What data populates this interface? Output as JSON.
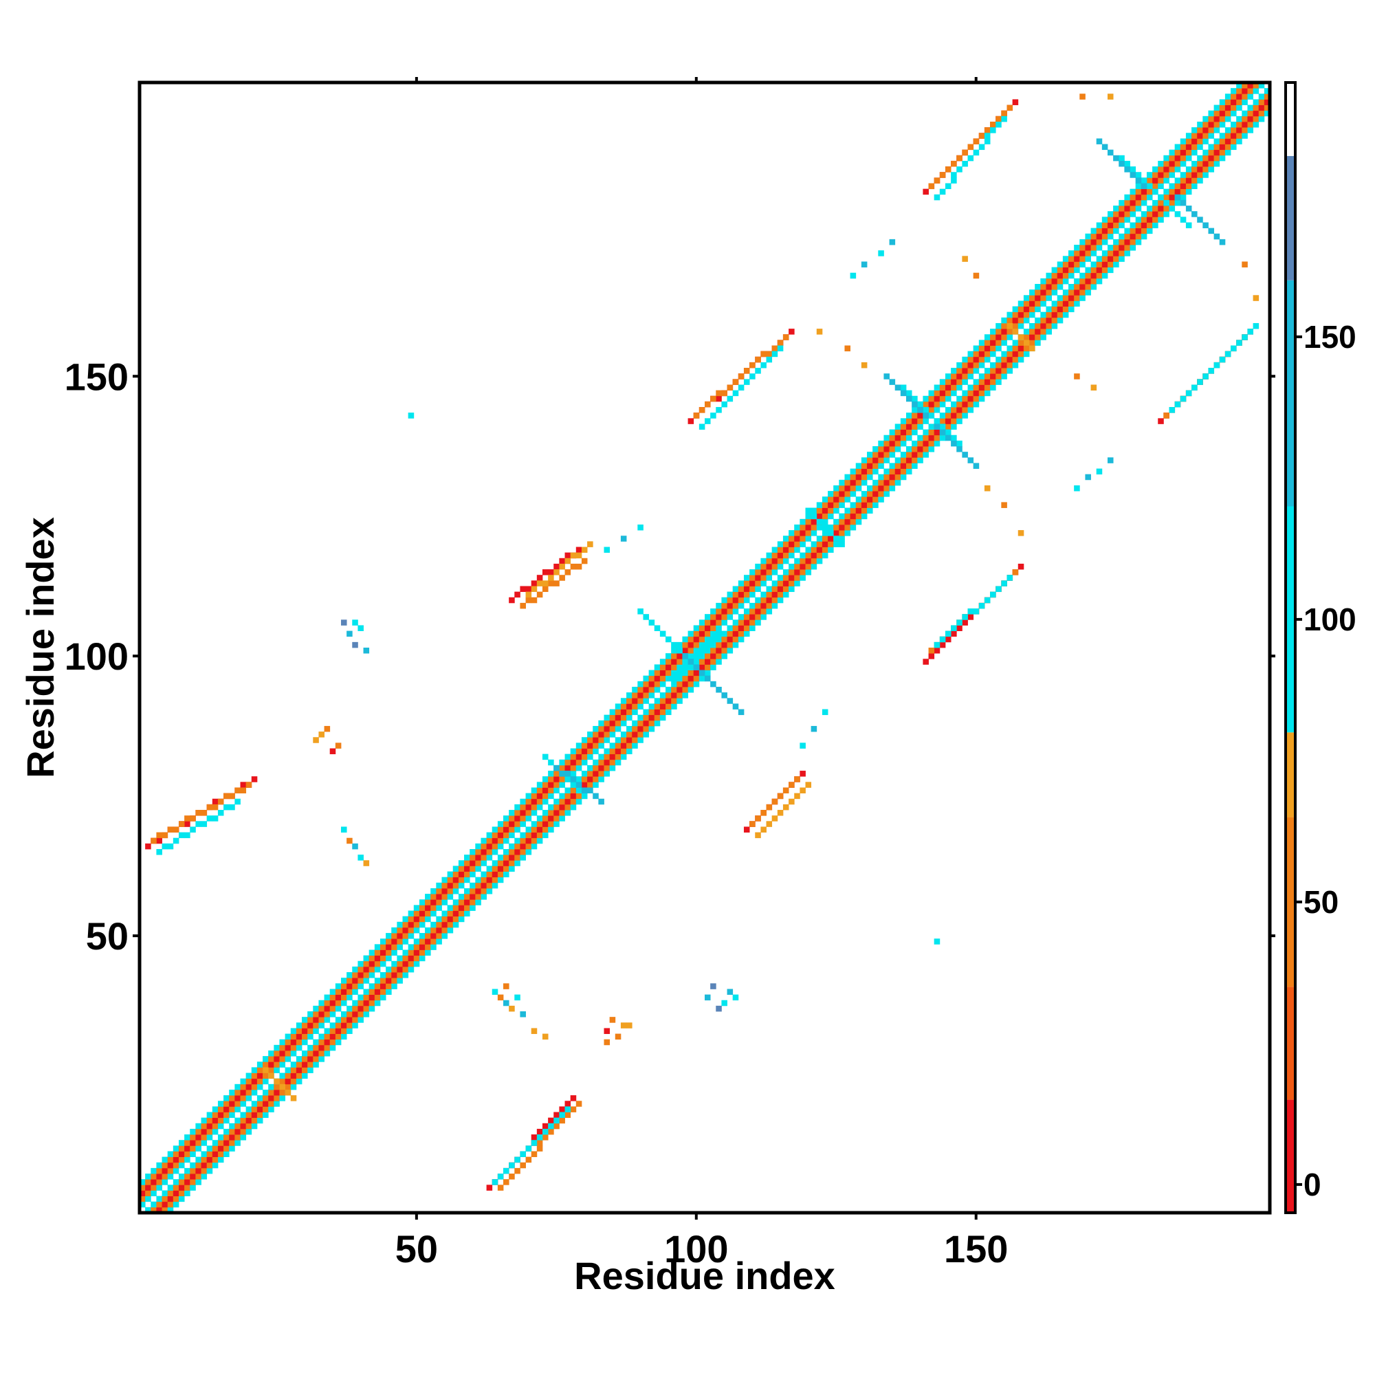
{
  "chart_data": {
    "type": "heatmap",
    "title": "",
    "xlabel": "Residue index",
    "ylabel": "Residue index",
    "xlim": [
      1,
      202
    ],
    "ylim": [
      1,
      202
    ],
    "x_ticks": [
      50,
      100,
      150
    ],
    "y_ticks": [
      50,
      100,
      150
    ],
    "grid": false,
    "colorbar": {
      "position": "right",
      "ticks": [
        0,
        50,
        100,
        150
      ],
      "range": [
        -5,
        195
      ],
      "bins": [
        {
          "from": -5,
          "to": 15,
          "color": "#e8141c"
        },
        {
          "from": 15,
          "to": 35,
          "color": "#f05a14"
        },
        {
          "from": 35,
          "to": 65,
          "color": "#ef7f16"
        },
        {
          "from": 65,
          "to": 80,
          "color": "#f0a020"
        },
        {
          "from": 80,
          "to": 120,
          "color": "#00e5ee"
        },
        {
          "from": 120,
          "to": 160,
          "color": "#1cb9d9"
        },
        {
          "from": 160,
          "to": 182,
          "color": "#5a84b8"
        },
        {
          "from": 182,
          "to": 195,
          "color": "#ffffff"
        }
      ]
    },
    "diagonal_band": {
      "from": 1,
      "to": 202,
      "offsets": [
        {
          "d": 1,
          "color": "#00e5ee"
        },
        {
          "d": 2,
          "color": "#ef7f16"
        },
        {
          "d": 3,
          "color": "#e8141c"
        },
        {
          "d": 4,
          "color": "#ef7f16"
        },
        {
          "d": 5,
          "color": "#00e5ee"
        }
      ]
    },
    "contact_segments": [
      {
        "x1": 63,
        "y1": 5,
        "x2": 78,
        "y2": 21,
        "color": "#e8141c"
      },
      {
        "x1": 65,
        "y1": 5,
        "x2": 79,
        "y2": 20,
        "color": "#ef7f16"
      },
      {
        "x1": 64,
        "y1": 6,
        "x2": 77,
        "y2": 19,
        "color": "#00e5ee"
      },
      {
        "x1": 2,
        "y1": 66,
        "x2": 21,
        "y2": 78,
        "color": "#e8141c"
      },
      {
        "x1": 3,
        "y1": 67,
        "x2": 20,
        "y2": 77,
        "color": "#ef7f16"
      },
      {
        "x1": 4,
        "y1": 65,
        "x2": 18,
        "y2": 74,
        "color": "#00e5ee"
      },
      {
        "x1": 67,
        "y1": 110,
        "x2": 79,
        "y2": 119,
        "color": "#e8141c"
      },
      {
        "x1": 69,
        "y1": 109,
        "x2": 80,
        "y2": 117,
        "color": "#ef7f16"
      },
      {
        "x1": 70,
        "y1": 111,
        "x2": 81,
        "y2": 120,
        "color": "#f0a020"
      },
      {
        "x1": 109,
        "y1": 69,
        "x2": 119,
        "y2": 79,
        "color": "#e8141c"
      },
      {
        "x1": 110,
        "y1": 70,
        "x2": 118,
        "y2": 78,
        "color": "#ef7f16"
      },
      {
        "x1": 111,
        "y1": 68,
        "x2": 120,
        "y2": 77,
        "color": "#f0a020"
      },
      {
        "x1": 99,
        "y1": 142,
        "x2": 117,
        "y2": 158,
        "color": "#e8141c"
      },
      {
        "x1": 100,
        "y1": 143,
        "x2": 116,
        "y2": 157,
        "color": "#ef7f16"
      },
      {
        "x1": 101,
        "y1": 141,
        "x2": 115,
        "y2": 155,
        "color": "#00e5ee"
      },
      {
        "x1": 141,
        "y1": 99,
        "x2": 158,
        "y2": 116,
        "color": "#e8141c"
      },
      {
        "x1": 142,
        "y1": 101,
        "x2": 157,
        "y2": 115,
        "color": "#ef7f16"
      },
      {
        "x1": 143,
        "y1": 102,
        "x2": 156,
        "y2": 114,
        "color": "#00e5ee"
      },
      {
        "x1": 141,
        "y1": 183,
        "x2": 157,
        "y2": 199,
        "color": "#e8141c"
      },
      {
        "x1": 142,
        "y1": 184,
        "x2": 156,
        "y2": 198,
        "color": "#ef7f16"
      },
      {
        "x1": 143,
        "y1": 182,
        "x2": 155,
        "y2": 196,
        "color": "#00e5ee"
      },
      {
        "x1": 183,
        "y1": 142,
        "x2": 199,
        "y2": 158,
        "color": "#e8141c"
      },
      {
        "x1": 184,
        "y1": 143,
        "x2": 198,
        "y2": 157,
        "color": "#ef7f16"
      },
      {
        "x1": 185,
        "y1": 144,
        "x2": 200,
        "y2": 159,
        "color": "#00e5ee"
      },
      {
        "x1": 96,
        "y1": 96,
        "x2": 104,
        "y2": 104,
        "color": "#00e5ee"
      },
      {
        "x1": 90,
        "y1": 108,
        "x2": 100,
        "y2": 98,
        "color": "#00e5ee"
      },
      {
        "x1": 98,
        "y1": 100,
        "x2": 108,
        "y2": 90,
        "color": "#1cb9d9"
      },
      {
        "x1": 137,
        "y1": 148,
        "x2": 147,
        "y2": 138,
        "color": "#00e5ee"
      },
      {
        "x1": 134,
        "y1": 150,
        "x2": 141,
        "y2": 143,
        "color": "#1cb9d9"
      },
      {
        "x1": 143,
        "y1": 141,
        "x2": 150,
        "y2": 134,
        "color": "#1cb9d9"
      },
      {
        "x1": 176,
        "y1": 189,
        "x2": 188,
        "y2": 177,
        "color": "#00e5ee"
      },
      {
        "x1": 172,
        "y1": 192,
        "x2": 180,
        "y2": 184,
        "color": "#1cb9d9"
      },
      {
        "x1": 186,
        "y1": 182,
        "x2": 194,
        "y2": 174,
        "color": "#1cb9d9"
      },
      {
        "x1": 23,
        "y1": 26,
        "x2": 28,
        "y2": 21,
        "color": "#f0a020"
      },
      {
        "x1": 73,
        "y1": 82,
        "x2": 80,
        "y2": 75,
        "color": "#00e5ee"
      },
      {
        "x1": 75,
        "y1": 80,
        "x2": 83,
        "y2": 74,
        "color": "#1cb9d9"
      },
      {
        "x1": 120,
        "y1": 126,
        "x2": 126,
        "y2": 120,
        "color": "#00e5ee"
      },
      {
        "x1": 156,
        "y1": 159,
        "x2": 160,
        "y2": 155,
        "color": "#f0a020"
      }
    ],
    "contact_clusters": [
      {
        "x": 38,
        "y": 104,
        "color": "#1cb9d9"
      },
      {
        "x": 39,
        "y": 102,
        "color": "#5a84b8"
      },
      {
        "x": 40,
        "y": 105,
        "color": "#00e5ee"
      },
      {
        "x": 41,
        "y": 101,
        "color": "#1cb9d9"
      },
      {
        "x": 37,
        "y": 106,
        "color": "#5a84b8"
      },
      {
        "x": 39,
        "y": 106,
        "color": "#00e5ee"
      },
      {
        "x": 102,
        "y": 39,
        "color": "#1cb9d9"
      },
      {
        "x": 103,
        "y": 41,
        "color": "#5a84b8"
      },
      {
        "x": 105,
        "y": 38,
        "color": "#00e5ee"
      },
      {
        "x": 106,
        "y": 40,
        "color": "#1cb9d9"
      },
      {
        "x": 104,
        "y": 37,
        "color": "#5a84b8"
      },
      {
        "x": 107,
        "y": 39,
        "color": "#00e5ee"
      },
      {
        "x": 64,
        "y": 40,
        "color": "#00e5ee"
      },
      {
        "x": 65,
        "y": 39,
        "color": "#ef7f16"
      },
      {
        "x": 66,
        "y": 38,
        "color": "#1cb9d9"
      },
      {
        "x": 67,
        "y": 37,
        "color": "#f0a020"
      },
      {
        "x": 68,
        "y": 39,
        "color": "#00e5ee"
      },
      {
        "x": 69,
        "y": 36,
        "color": "#1cb9d9"
      },
      {
        "x": 66,
        "y": 41,
        "color": "#ef7f16"
      },
      {
        "x": 40,
        "y": 64,
        "color": "#00e5ee"
      },
      {
        "x": 39,
        "y": 66,
        "color": "#1cb9d9"
      },
      {
        "x": 38,
        "y": 67,
        "color": "#ef7f16"
      },
      {
        "x": 41,
        "y": 63,
        "color": "#f0a020"
      },
      {
        "x": 37,
        "y": 69,
        "color": "#00e5ee"
      },
      {
        "x": 36,
        "y": 84,
        "color": "#ef7f16"
      },
      {
        "x": 33,
        "y": 86,
        "color": "#f0a020"
      },
      {
        "x": 34,
        "y": 87,
        "color": "#ef7f16"
      },
      {
        "x": 35,
        "y": 83,
        "color": "#e8141c"
      },
      {
        "x": 32,
        "y": 85,
        "color": "#f0a020"
      },
      {
        "x": 84,
        "y": 33,
        "color": "#e8141c"
      },
      {
        "x": 86,
        "y": 32,
        "color": "#ef7f16"
      },
      {
        "x": 87,
        "y": 34,
        "color": "#f0a020"
      },
      {
        "x": 85,
        "y": 35,
        "color": "#ef7f16"
      },
      {
        "x": 49,
        "y": 143,
        "color": "#00e5ee"
      },
      {
        "x": 143,
        "y": 49,
        "color": "#00e5ee"
      },
      {
        "x": 128,
        "y": 168,
        "color": "#00e5ee"
      },
      {
        "x": 130,
        "y": 170,
        "color": "#1cb9d9"
      },
      {
        "x": 133,
        "y": 172,
        "color": "#00e5ee"
      },
      {
        "x": 135,
        "y": 174,
        "color": "#1cb9d9"
      },
      {
        "x": 168,
        "y": 130,
        "color": "#00e5ee"
      },
      {
        "x": 170,
        "y": 132,
        "color": "#1cb9d9"
      },
      {
        "x": 172,
        "y": 133,
        "color": "#00e5ee"
      },
      {
        "x": 174,
        "y": 135,
        "color": "#1cb9d9"
      },
      {
        "x": 122,
        "y": 158,
        "color": "#f0a020"
      },
      {
        "x": 127,
        "y": 155,
        "color": "#ef7f16"
      },
      {
        "x": 130,
        "y": 152,
        "color": "#f0a020"
      },
      {
        "x": 158,
        "y": 122,
        "color": "#f0a020"
      },
      {
        "x": 155,
        "y": 127,
        "color": "#ef7f16"
      },
      {
        "x": 152,
        "y": 130,
        "color": "#f0a020"
      },
      {
        "x": 148,
        "y": 171,
        "color": "#f0a020"
      },
      {
        "x": 150,
        "y": 168,
        "color": "#ef7f16"
      },
      {
        "x": 171,
        "y": 148,
        "color": "#f0a020"
      },
      {
        "x": 168,
        "y": 150,
        "color": "#ef7f16"
      },
      {
        "x": 174,
        "y": 200,
        "color": "#f0a020"
      },
      {
        "x": 169,
        "y": 200,
        "color": "#ef7f16"
      },
      {
        "x": 200,
        "y": 164,
        "color": "#f0a020"
      },
      {
        "x": 198,
        "y": 170,
        "color": "#ef7f16"
      },
      {
        "x": 90,
        "y": 123,
        "color": "#00e5ee"
      },
      {
        "x": 87,
        "y": 121,
        "color": "#1cb9d9"
      },
      {
        "x": 84,
        "y": 119,
        "color": "#00e5ee"
      },
      {
        "x": 123,
        "y": 90,
        "color": "#00e5ee"
      },
      {
        "x": 121,
        "y": 87,
        "color": "#1cb9d9"
      },
      {
        "x": 119,
        "y": 84,
        "color": "#00e5ee"
      },
      {
        "x": 84,
        "y": 31,
        "color": "#ef7f16"
      },
      {
        "x": 88,
        "y": 34,
        "color": "#f0a020"
      },
      {
        "x": 71,
        "y": 33,
        "color": "#f0a020"
      },
      {
        "x": 73,
        "y": 32,
        "color": "#f0a020"
      }
    ]
  }
}
